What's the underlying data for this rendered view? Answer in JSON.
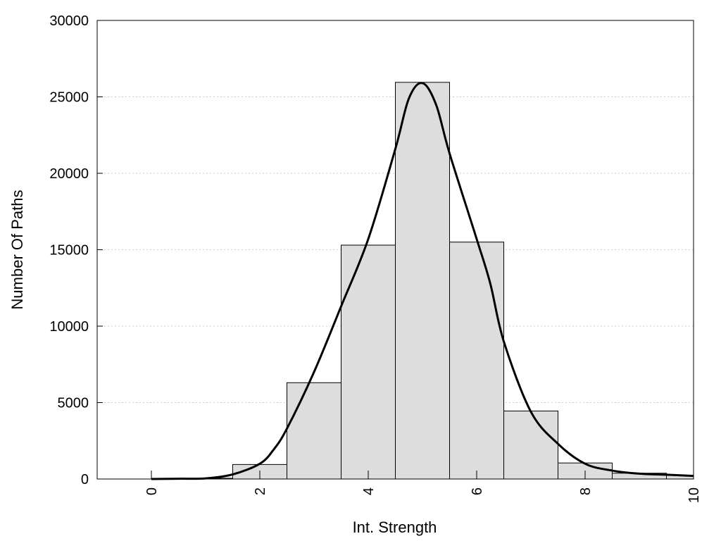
{
  "chart_data": {
    "type": "bar",
    "xlabel": "Int. Strength",
    "ylabel": "Number Of Paths",
    "xlim": [
      -1,
      10
    ],
    "ylim": [
      0,
      30000
    ],
    "x_ticks": [
      0,
      2,
      4,
      6,
      8,
      10
    ],
    "x_tick_labels": [
      "0",
      "2",
      "4",
      "6",
      "8",
      "10"
    ],
    "y_ticks": [
      0,
      5000,
      10000,
      15000,
      20000,
      25000,
      30000
    ],
    "y_tick_labels": [
      "0",
      "5000",
      "10000",
      "15000",
      "20000",
      "25000",
      "30000"
    ],
    "grid": "horizontal dotted",
    "bar_width": 1,
    "bars": [
      {
        "x": 0,
        "value": 0
      },
      {
        "x": 1,
        "value": 50
      },
      {
        "x": 2,
        "value": 950
      },
      {
        "x": 3,
        "value": 6300
      },
      {
        "x": 4,
        "value": 15300
      },
      {
        "x": 5,
        "value": 25950
      },
      {
        "x": 6,
        "value": 15500
      },
      {
        "x": 7,
        "value": 4450
      },
      {
        "x": 8,
        "value": 1050
      },
      {
        "x": 9,
        "value": 380
      },
      {
        "x": 10,
        "value": 250
      }
    ],
    "curve": {
      "points": [
        [
          0,
          0
        ],
        [
          0.5,
          20
        ],
        [
          1,
          40
        ],
        [
          1.5,
          300
        ],
        [
          2,
          1000
        ],
        [
          2.25,
          1900
        ],
        [
          2.5,
          3300
        ],
        [
          3,
          7000
        ],
        [
          3.5,
          11300
        ],
        [
          4,
          15700
        ],
        [
          4.5,
          21600
        ],
        [
          4.75,
          24900
        ],
        [
          5,
          25900
        ],
        [
          5.25,
          24500
        ],
        [
          5.5,
          21300
        ],
        [
          6,
          15700
        ],
        [
          6.25,
          12800
        ],
        [
          6.5,
          9000
        ],
        [
          7,
          4400
        ],
        [
          7.5,
          2300
        ],
        [
          8,
          1000
        ],
        [
          8.5,
          550
        ],
        [
          9,
          350
        ],
        [
          9.5,
          280
        ],
        [
          10,
          200
        ]
      ]
    },
    "colors": {
      "bar_fill": "#dddddd",
      "bar_stroke": "#000000",
      "curve": "#000000",
      "grid": "#cccccc"
    }
  }
}
